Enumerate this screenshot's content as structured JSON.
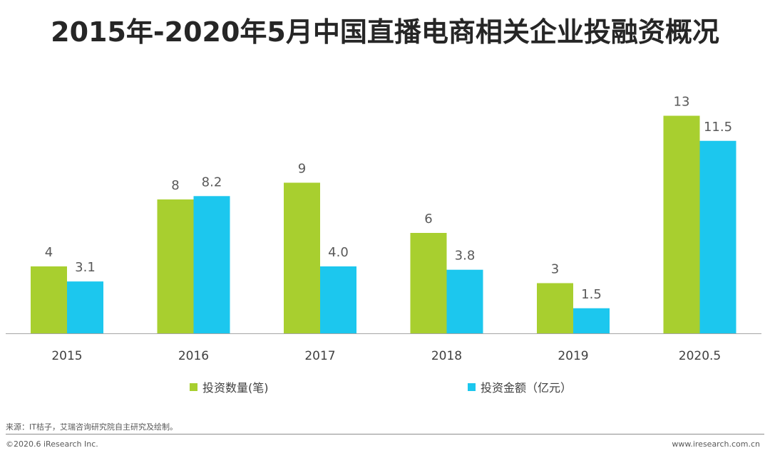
{
  "title": "2015年-2020年5月中国直播电商相关企业投融资概况",
  "colors": {
    "series_count": "#a8cf2f",
    "series_amount": "#1cc7ee",
    "axis": "#a6a6a6"
  },
  "chart_data": {
    "type": "bar",
    "title": "2015年-2020年5月中国直播电商相关企业投融资概况",
    "categories": [
      "2015",
      "2016",
      "2017",
      "2018",
      "2019",
      "2020.5"
    ],
    "series": [
      {
        "name": "投资数量(笔)",
        "values": [
          4,
          8,
          9,
          6,
          3,
          13
        ],
        "labels": [
          "4",
          "8",
          "9",
          "6",
          "3",
          "13"
        ]
      },
      {
        "name": "投资金额（亿元）",
        "values": [
          3.1,
          8.2,
          4.0,
          3.8,
          1.5,
          11.5
        ],
        "labels": [
          "3.1",
          "8.2",
          "4.0",
          "3.8",
          "1.5",
          "11.5"
        ]
      }
    ],
    "xlabel": "",
    "ylabel": "",
    "ylim": [
      0,
      13.5
    ],
    "grid": false,
    "legend": "bottom"
  },
  "legend": {
    "items": [
      {
        "label": "投资数量(笔)",
        "icon": "green-square-icon"
      },
      {
        "label": "投资金额（亿元）",
        "icon": "blue-square-icon"
      }
    ]
  },
  "footer": {
    "source": "来源：IT桔子，艾瑞咨询研究院自主研究及绘制。",
    "copyright": "©2020.6 iResearch Inc.",
    "website": "www.iresearch.com.cn"
  }
}
